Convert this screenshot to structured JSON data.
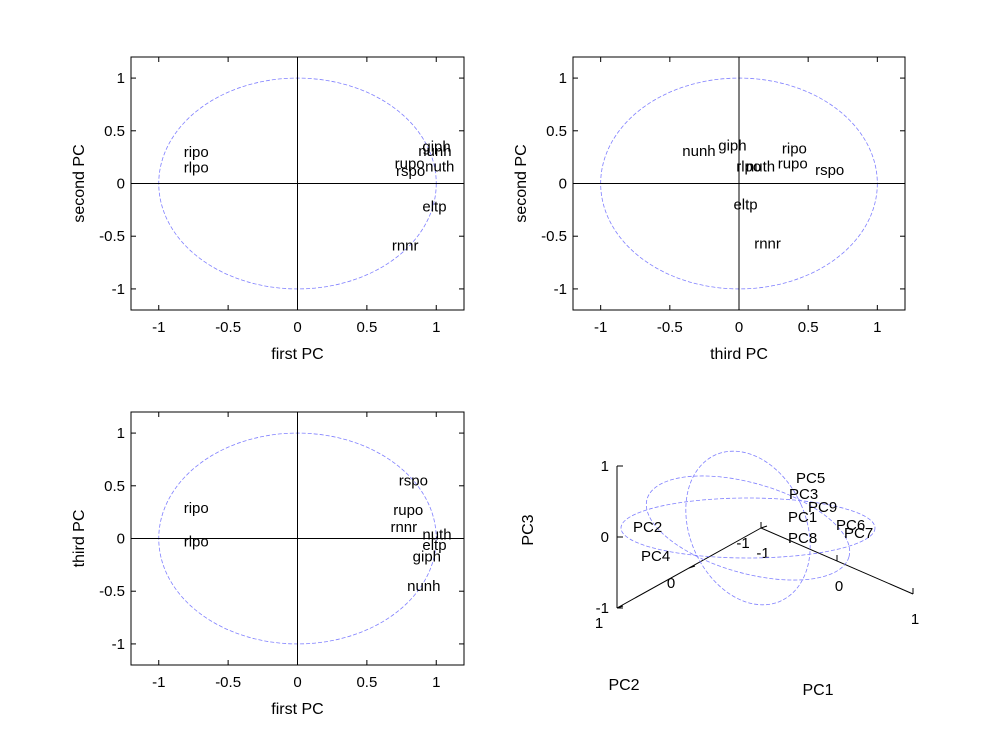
{
  "chart_data": [
    {
      "type": "scatter",
      "xlabel": "first PC",
      "ylabel": "second PC",
      "xlim": [
        -1.2,
        1.2
      ],
      "ylim": [
        -1.2,
        1.2
      ],
      "xticks": [
        -1,
        -0.5,
        0,
        0.5,
        1
      ],
      "yticks": [
        -1,
        -0.5,
        0,
        0.5,
        1
      ],
      "unit_circle": true,
      "reference_lines": "x=0, y=0",
      "points": [
        {
          "label": "ripo",
          "x": -0.82,
          "y": 0.3
        },
        {
          "label": "rlpo",
          "x": -0.82,
          "y": 0.15
        },
        {
          "label": "giph",
          "x": 0.9,
          "y": 0.35
        },
        {
          "label": "nunh",
          "x": 0.87,
          "y": 0.31
        },
        {
          "label": "rupo",
          "x": 0.7,
          "y": 0.19
        },
        {
          "label": "nuth",
          "x": 0.92,
          "y": 0.16
        },
        {
          "label": "rspo",
          "x": 0.71,
          "y": 0.12
        },
        {
          "label": "eltp",
          "x": 0.9,
          "y": -0.22
        },
        {
          "label": "rnnr",
          "x": 0.68,
          "y": -0.59
        }
      ]
    },
    {
      "type": "scatter",
      "xlabel": "third PC",
      "ylabel": "second PC",
      "xlim": [
        -1.2,
        1.2
      ],
      "ylim": [
        -1.2,
        1.2
      ],
      "xticks": [
        -1,
        -0.5,
        0,
        0.5,
        1
      ],
      "yticks": [
        -1,
        -0.5,
        0,
        0.5,
        1
      ],
      "unit_circle": true,
      "reference_lines": "x=0, y=0",
      "points": [
        {
          "label": "nunh",
          "x": -0.41,
          "y": 0.31
        },
        {
          "label": "giph",
          "x": -0.15,
          "y": 0.36
        },
        {
          "label": "ripo",
          "x": 0.31,
          "y": 0.33
        },
        {
          "label": "rlpo",
          "x": -0.02,
          "y": 0.16
        },
        {
          "label": "nuth",
          "x": 0.05,
          "y": 0.16
        },
        {
          "label": "rupo",
          "x": 0.28,
          "y": 0.19
        },
        {
          "label": "rspo",
          "x": 0.55,
          "y": 0.13
        },
        {
          "label": "eltp",
          "x": -0.04,
          "y": -0.2
        },
        {
          "label": "rnnr",
          "x": 0.11,
          "y": -0.57
        }
      ]
    },
    {
      "type": "scatter",
      "xlabel": "first PC",
      "ylabel": "third PC",
      "xlim": [
        -1.2,
        1.2
      ],
      "ylim": [
        -1.2,
        1.2
      ],
      "xticks": [
        -1,
        -0.5,
        0,
        0.5,
        1
      ],
      "yticks": [
        -1,
        -0.5,
        0,
        0.5,
        1
      ],
      "unit_circle": true,
      "reference_lines": "x=0, y=0",
      "points": [
        {
          "label": "rspo",
          "x": 0.73,
          "y": 0.55
        },
        {
          "label": "ripo",
          "x": -0.82,
          "y": 0.29
        },
        {
          "label": "rupo",
          "x": 0.69,
          "y": 0.27
        },
        {
          "label": "rnnr",
          "x": 0.67,
          "y": 0.11
        },
        {
          "label": "nuth",
          "x": 0.9,
          "y": 0.04
        },
        {
          "label": "rlpo",
          "x": -0.82,
          "y": -0.03
        },
        {
          "label": "eltp",
          "x": 0.9,
          "y": -0.06
        },
        {
          "label": "giph",
          "x": 0.83,
          "y": -0.17
        },
        {
          "label": "nunh",
          "x": 0.79,
          "y": -0.45
        }
      ]
    },
    {
      "type": "scatter3d",
      "xlabel": "PC1",
      "ylabel": "PC2",
      "zlabel": "PC3",
      "xlim": [
        -1,
        1
      ],
      "ylim": [
        -1,
        1
      ],
      "zlim": [
        -1,
        1
      ],
      "xticks": [
        -1,
        0,
        1
      ],
      "yticks": [
        -1,
        0,
        1
      ],
      "zticks": [
        -1,
        0,
        1
      ],
      "unit_circles": 3,
      "labels": [
        "PC5",
        "PC3",
        "PC9",
        "PC1",
        "PC6",
        "PC7",
        "PC8",
        "PC2",
        "PC4"
      ]
    }
  ]
}
